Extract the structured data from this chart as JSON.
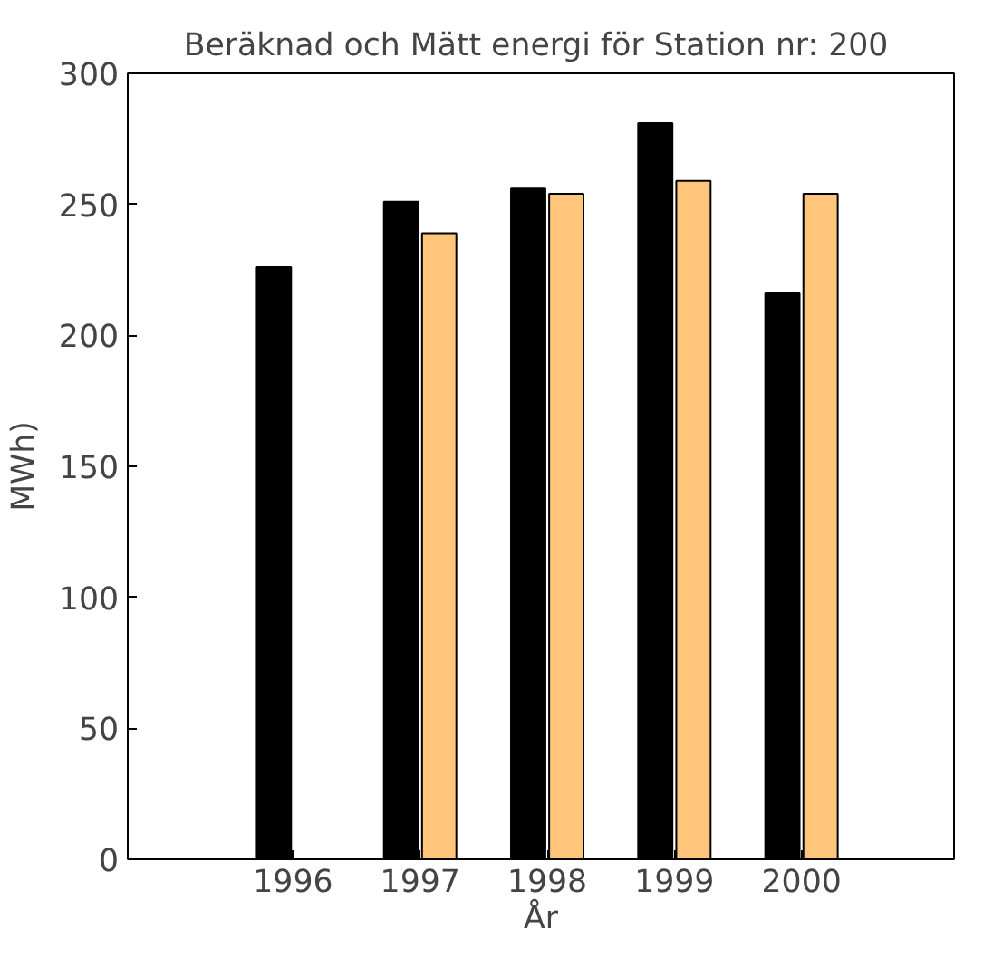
{
  "chart_data": {
    "type": "bar",
    "title": "Beräknad och Mätt energi för Station nr:  200",
    "xlabel": "År",
    "ylabel": "MWh)",
    "x": [
      1996,
      1997,
      1998,
      1999,
      2000
    ],
    "series": [
      {
        "color": "#000000",
        "values": [
          226,
          251,
          256,
          281,
          216
        ]
      },
      {
        "color": "#ffc57a",
        "values": [
          null,
          239,
          254,
          259,
          254
        ]
      }
    ],
    "xlim": [
      1994.7,
      2001.2
    ],
    "xticks": [
      1996,
      1997,
      1998,
      1999,
      2000
    ],
    "ylim": [
      0,
      300
    ],
    "yticks": [
      0,
      50,
      100,
      150,
      200,
      250,
      300
    ],
    "grid": false
  }
}
